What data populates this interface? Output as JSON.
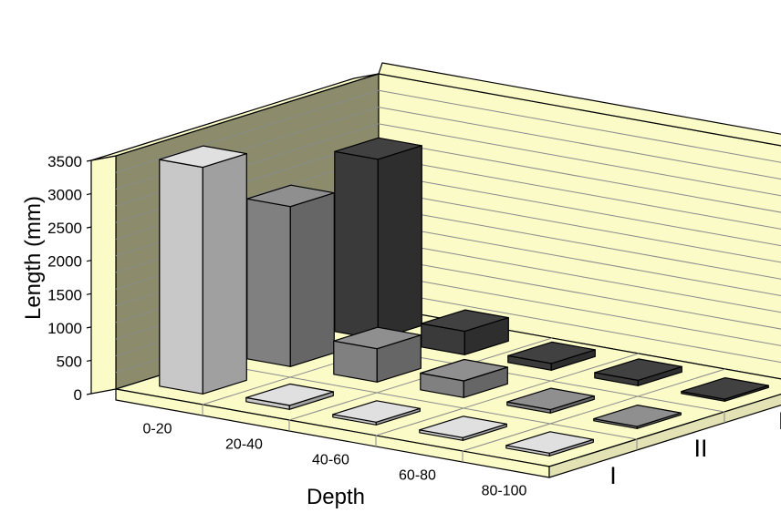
{
  "chart_data": {
    "type": "bar",
    "title": "",
    "xlabel": "Depth",
    "ylabel": "Length (mm)",
    "categories": [
      "0-20",
      "20-40",
      "40-60",
      "60-80",
      "80-100"
    ],
    "ylim": [
      0,
      3500
    ],
    "yticks": [
      "0",
      "500",
      "1000",
      "1500",
      "2000",
      "2500",
      "3000",
      "3500"
    ],
    "series": [
      {
        "name": "I",
        "color": "#c8c8c8",
        "values": [
          3400,
          60,
          40,
          40,
          40
        ]
      },
      {
        "name": "II",
        "color": "#808080",
        "values": [
          2400,
          500,
          250,
          50,
          30
        ]
      },
      {
        "name": "III",
        "color": "#3a3a3a",
        "values": [
          2700,
          350,
          100,
          80,
          30
        ]
      }
    ],
    "wall_color": "#fbfbc8",
    "left_wall_color": "#8c8c6c",
    "grid": true
  }
}
